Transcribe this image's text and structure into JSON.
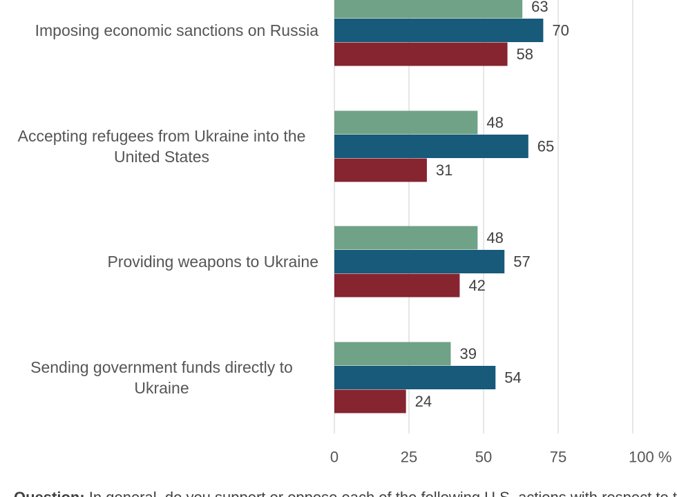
{
  "chart_data": {
    "type": "bar",
    "orientation": "horizontal",
    "categories": [
      "Imposing economic sanctions on Russia",
      "Accepting refugees from Ukraine into the United States",
      "Providing weapons to Ukraine",
      "Sending government funds directly to Ukraine"
    ],
    "series": [
      {
        "values": [
          63,
          48,
          48,
          39
        ],
        "color": "#6fa287"
      },
      {
        "values": [
          70,
          65,
          57,
          54
        ],
        "color": "#175a7a"
      },
      {
        "values": [
          58,
          31,
          42,
          24
        ],
        "color": "#862430"
      }
    ],
    "xlim": [
      0,
      100
    ],
    "x_ticks": [
      "0",
      "25",
      "50",
      "75",
      "100 %"
    ],
    "grid": true,
    "data_labels": true
  },
  "footnote": {
    "label": "Question:",
    "text": " In general, do you support or oppose each of the following U.S. actions with respect to the"
  }
}
